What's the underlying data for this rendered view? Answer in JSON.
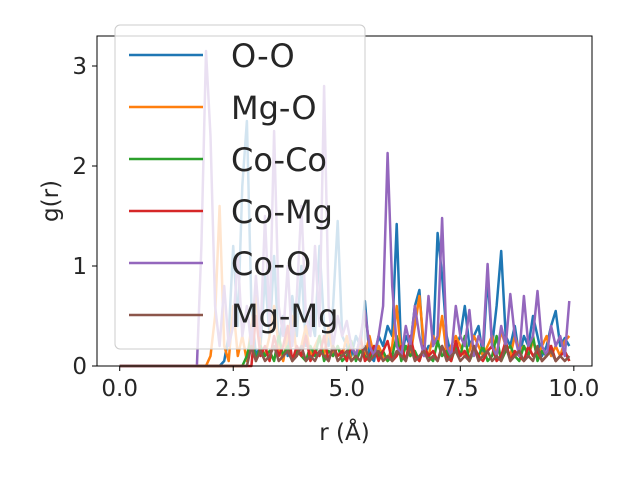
{
  "chart_data": {
    "type": "line",
    "title": "",
    "xlabel": "r (Å)",
    "ylabel": "g(r)",
    "xlim": [
      -0.5,
      10.4
    ],
    "ylim": [
      0,
      3.3
    ],
    "xticks": [
      0.0,
      2.5,
      5.0,
      7.5,
      10.0
    ],
    "xtick_labels": [
      "0.0",
      "2.5",
      "5.0",
      "7.5",
      "10.0"
    ],
    "yticks": [
      0,
      1,
      2,
      3
    ],
    "ytick_labels": [
      "0",
      "1",
      "2",
      "3"
    ],
    "grid": false,
    "legend_position": "upper-left",
    "series": [
      {
        "name": "O-O",
        "color": "#1f77b4",
        "x": [
          0.0,
          2.0,
          2.1,
          2.2,
          2.3,
          2.4,
          2.5,
          2.6,
          2.7,
          2.8,
          2.9,
          3.0,
          3.1,
          3.2,
          3.3,
          3.4,
          3.5,
          3.6,
          3.7,
          3.8,
          3.9,
          4.0,
          4.1,
          4.2,
          4.3,
          4.4,
          4.5,
          4.6,
          4.7,
          4.8,
          4.9,
          5.0,
          5.1,
          5.2,
          5.3,
          5.4,
          5.5,
          5.6,
          5.7,
          5.8,
          5.9,
          6.0,
          6.1,
          6.2,
          6.3,
          6.4,
          6.5,
          6.6,
          6.7,
          6.8,
          6.9,
          7.0,
          7.1,
          7.2,
          7.3,
          7.4,
          7.5,
          7.6,
          7.7,
          7.8,
          7.9,
          8.0,
          8.1,
          8.2,
          8.3,
          8.4,
          8.5,
          8.6,
          8.7,
          8.8,
          8.9,
          9.0,
          9.1,
          9.2,
          9.3,
          9.4,
          9.5,
          9.6,
          9.7,
          9.8,
          9.9
        ],
        "y": [
          0,
          0,
          0,
          0,
          0.05,
          0.3,
          1.2,
          0.4,
          1.8,
          2.45,
          0.6,
          0.1,
          0.2,
          0.9,
          0.3,
          1.1,
          0.2,
          0.5,
          0.1,
          0.7,
          0.3,
          1.0,
          0.2,
          0.5,
          0.3,
          1.2,
          0.4,
          0.2,
          0.6,
          1.45,
          0.3,
          0.2,
          0.1,
          0.3,
          0.2,
          0.65,
          0.1,
          0.05,
          0.3,
          0.2,
          0.4,
          0.3,
          1.42,
          0.1,
          0.3,
          0.2,
          0.6,
          0.76,
          0.1,
          0.2,
          0.2,
          1.33,
          0.9,
          0.3,
          0.1,
          0.2,
          0.3,
          0.6,
          0.2,
          0.3,
          0.4,
          0.1,
          0.9,
          0.2,
          0.6,
          1.15,
          0.3,
          0.2,
          0.4,
          0.1,
          0.3,
          0.2,
          0.5,
          0.3,
          0.1,
          0.2,
          0.4,
          0.55,
          0.2,
          0.28,
          0.2
        ]
      },
      {
        "name": "Mg-O",
        "color": "#ff7f0e",
        "x": [
          0.0,
          1.9,
          2.0,
          2.1,
          2.2,
          2.3,
          2.4,
          2.5,
          2.6,
          2.7,
          2.8,
          2.9,
          3.0,
          3.1,
          3.2,
          3.3,
          3.4,
          3.5,
          3.6,
          3.7,
          3.8,
          3.9,
          4.0,
          4.1,
          4.2,
          4.3,
          4.4,
          4.5,
          4.6,
          4.7,
          4.8,
          4.9,
          5.0,
          5.1,
          5.2,
          5.3,
          5.4,
          5.5,
          5.6,
          5.7,
          5.8,
          5.9,
          6.0,
          6.1,
          6.2,
          6.3,
          6.4,
          6.5,
          6.6,
          6.7,
          6.8,
          6.9,
          7.0,
          7.1,
          7.2,
          7.3,
          7.4,
          7.5,
          7.6,
          7.7,
          7.8,
          7.9,
          8.0,
          8.1,
          8.2,
          8.3,
          8.4,
          8.5,
          8.6,
          8.7,
          8.8,
          8.9,
          9.0,
          9.1,
          9.2,
          9.3,
          9.4,
          9.5,
          9.6,
          9.7,
          9.8,
          9.9
        ],
        "y": [
          0,
          0,
          0.1,
          0.5,
          1.6,
          0.2,
          0.05,
          0.6,
          0.1,
          0.3,
          0.05,
          0.4,
          0.7,
          0.2,
          0.1,
          0.3,
          0.6,
          0.2,
          0.05,
          0.3,
          0.5,
          0.1,
          0.2,
          0.4,
          0.1,
          0.2,
          0.3,
          0.1,
          0.4,
          0.1,
          0.2,
          0.1,
          0.3,
          0.05,
          0.1,
          0.2,
          0.1,
          0.3,
          0.1,
          0.2,
          0.1,
          0.05,
          0.2,
          0.6,
          0.1,
          0.2,
          0.1,
          0.4,
          0.7,
          0.2,
          0.1,
          0.3,
          0.2,
          0.5,
          0.1,
          0.2,
          0.3,
          0.2,
          0.1,
          0.15,
          0.3,
          0.2,
          0.1,
          0.2,
          0.3,
          0.1,
          0.35,
          0.2,
          0.1,
          0.3,
          0.15,
          0.2,
          0.1,
          0.25,
          0.1,
          0.2,
          0.3,
          0.1,
          0.2,
          0.1,
          0.25,
          0.3
        ]
      },
      {
        "name": "Co-Co",
        "color": "#2ca02c",
        "x": [
          0.0,
          2.7,
          2.8,
          2.9,
          3.0,
          3.1,
          3.2,
          3.3,
          3.4,
          3.5,
          3.6,
          3.7,
          3.8,
          3.9,
          4.0,
          4.1,
          4.2,
          4.3,
          4.4,
          4.5,
          4.6,
          4.7,
          4.8,
          4.9,
          5.0,
          5.1,
          5.2,
          5.3,
          5.4,
          5.5,
          5.6,
          5.7,
          5.8,
          5.9,
          6.0,
          6.1,
          6.2,
          6.3,
          6.4,
          6.5,
          6.6,
          6.7,
          6.8,
          6.9,
          7.0,
          7.1,
          7.2,
          7.3,
          7.4,
          7.5,
          7.6,
          7.7,
          7.8,
          7.9,
          8.0,
          8.1,
          8.2,
          8.3,
          8.4,
          8.5,
          8.6,
          8.7,
          8.8,
          8.9,
          9.0,
          9.1,
          9.2,
          9.3,
          9.4,
          9.5,
          9.6,
          9.7,
          9.8,
          9.9
        ],
        "y": [
          0,
          0,
          0.1,
          0.3,
          0.05,
          0.2,
          0.1,
          0.15,
          0.05,
          0.3,
          0.1,
          0.2,
          0.05,
          0.15,
          0.1,
          0.05,
          0.2,
          0.1,
          0.3,
          0.05,
          0.15,
          0.1,
          0.2,
          0.05,
          0.1,
          0.25,
          0.05,
          0.15,
          0.1,
          0.05,
          0.2,
          0.1,
          0.15,
          0.05,
          0.1,
          0.3,
          0.05,
          0.2,
          0.1,
          0.15,
          0.05,
          0.2,
          0.1,
          0.05,
          0.25,
          0.1,
          0.15,
          0.05,
          0.2,
          0.1,
          0.3,
          0.05,
          0.15,
          0.1,
          0.2,
          0.05,
          0.1,
          0.3,
          0.05,
          0.15,
          0.2,
          0.1,
          0.05,
          0.2,
          0.1,
          0.3,
          0.05,
          0.15,
          0.1,
          0.2,
          0.05,
          0.1,
          0.15,
          0.05
        ]
      },
      {
        "name": "Co-Mg",
        "color": "#d62728",
        "x": [
          0.0,
          2.9,
          3.0,
          3.1,
          3.2,
          3.3,
          3.4,
          3.5,
          3.6,
          3.7,
          3.8,
          3.9,
          4.0,
          4.1,
          4.2,
          4.3,
          4.4,
          4.5,
          4.6,
          4.7,
          4.8,
          4.9,
          5.0,
          5.1,
          5.2,
          5.3,
          5.4,
          5.5,
          5.6,
          5.7,
          5.8,
          5.9,
          6.0,
          6.1,
          6.2,
          6.3,
          6.4,
          6.5,
          6.6,
          6.7,
          6.8,
          6.9,
          7.0,
          7.1,
          7.2,
          7.3,
          7.4,
          7.5,
          7.6,
          7.7,
          7.8,
          7.9,
          8.0,
          8.1,
          8.2,
          8.3,
          8.4,
          8.5,
          8.6,
          8.7,
          8.8,
          8.9,
          9.0,
          9.1,
          9.2,
          9.3,
          9.4,
          9.5,
          9.6,
          9.7,
          9.8,
          9.9
        ],
        "y": [
          0,
          0,
          0.5,
          0.1,
          0.2,
          0.05,
          0.3,
          0.1,
          0.2,
          0.4,
          0.05,
          0.2,
          0.1,
          0.3,
          0.05,
          0.15,
          0.1,
          0.3,
          0.05,
          0.2,
          0.1,
          0.15,
          0.05,
          0.2,
          0.1,
          0.3,
          0.05,
          0.1,
          0.2,
          0.05,
          0.15,
          0.25,
          0.05,
          0.1,
          0.2,
          0.05,
          0.3,
          0.1,
          0.05,
          0.2,
          0.1,
          0.15,
          0.05,
          0.2,
          0.1,
          0.05,
          0.25,
          0.1,
          0.15,
          0.05,
          0.2,
          0.1,
          0.05,
          0.15,
          0.2,
          0.05,
          0.1,
          0.25,
          0.05,
          0.15,
          0.1,
          0.05,
          0.2,
          0.1,
          0.15,
          0.05,
          0.1,
          0.2,
          0.05,
          0.1,
          0.15,
          0.05
        ]
      },
      {
        "name": "Co-O",
        "color": "#9467bd",
        "x": [
          0.0,
          1.7,
          1.8,
          1.9,
          2.0,
          2.1,
          2.2,
          2.3,
          2.4,
          2.5,
          2.6,
          2.7,
          2.8,
          2.9,
          3.0,
          3.1,
          3.2,
          3.3,
          3.4,
          3.5,
          3.6,
          3.7,
          3.8,
          3.9,
          4.0,
          4.1,
          4.2,
          4.3,
          4.4,
          4.5,
          4.6,
          4.7,
          4.8,
          4.9,
          5.0,
          5.1,
          5.2,
          5.3,
          5.4,
          5.5,
          5.6,
          5.7,
          5.8,
          5.9,
          6.0,
          6.1,
          6.2,
          6.3,
          6.4,
          6.5,
          6.6,
          6.7,
          6.8,
          6.9,
          7.0,
          7.1,
          7.2,
          7.3,
          7.4,
          7.5,
          7.6,
          7.7,
          7.8,
          7.9,
          8.0,
          8.1,
          8.2,
          8.3,
          8.4,
          8.5,
          8.6,
          8.7,
          8.8,
          8.9,
          9.0,
          9.1,
          9.2,
          9.3,
          9.4,
          9.5,
          9.6,
          9.7,
          9.8,
          9.9
        ],
        "y": [
          0,
          0,
          1.2,
          3.15,
          2.3,
          0.6,
          0.2,
          0.8,
          0.2,
          0.4,
          1.1,
          0.3,
          0.6,
          0.2,
          0.9,
          0.3,
          1.5,
          0.4,
          2.35,
          0.6,
          0.3,
          1.0,
          0.2,
          0.7,
          1.6,
          0.5,
          0.3,
          1.2,
          0.4,
          2.8,
          0.6,
          0.2,
          0.5,
          0.3,
          0.45,
          0.2,
          0.1,
          0.3,
          0.55,
          0.2,
          0.1,
          0.3,
          0.6,
          2.13,
          0.8,
          0.2,
          0.1,
          0.4,
          0.2,
          0.6,
          0.3,
          0.1,
          0.7,
          0.2,
          0.3,
          1.48,
          0.2,
          0.1,
          0.6,
          0.3,
          0.2,
          0.56,
          0.1,
          0.3,
          0.2,
          1.02,
          0.2,
          0.1,
          0.4,
          0.2,
          0.72,
          0.3,
          0.1,
          0.7,
          0.2,
          0.3,
          0.75,
          0.2,
          0.1,
          0.4,
          0.2,
          0.3,
          0.1,
          0.65
        ]
      },
      {
        "name": "Mg-Mg",
        "color": "#8c564b",
        "x": [
          0.0,
          2.8,
          2.9,
          3.0,
          3.1,
          3.2,
          3.3,
          3.4,
          3.5,
          3.6,
          3.7,
          3.8,
          3.9,
          4.0,
          4.1,
          4.2,
          4.3,
          4.4,
          4.5,
          4.6,
          4.7,
          4.8,
          4.9,
          5.0,
          5.1,
          5.2,
          5.3,
          5.4,
          5.5,
          5.6,
          5.7,
          5.8,
          5.9,
          6.0,
          6.1,
          6.2,
          6.3,
          6.4,
          6.5,
          6.6,
          6.7,
          6.8,
          6.9,
          7.0,
          7.1,
          7.2,
          7.3,
          7.4,
          7.5,
          7.6,
          7.7,
          7.8,
          7.9,
          8.0,
          8.1,
          8.2,
          8.3,
          8.4,
          8.5,
          8.6,
          8.7,
          8.8,
          8.9,
          9.0,
          9.1,
          9.2,
          9.3,
          9.4,
          9.5,
          9.6,
          9.7,
          9.8,
          9.9
        ],
        "y": [
          0,
          0,
          0.2,
          0.05,
          0.15,
          0.05,
          0.1,
          0.2,
          0.05,
          0.1,
          0.15,
          0.05,
          0.1,
          0.2,
          0.05,
          0.1,
          0.05,
          0.15,
          0.1,
          0.05,
          0.2,
          0.05,
          0.1,
          0.15,
          0.05,
          0.1,
          0.05,
          0.2,
          0.05,
          0.1,
          0.15,
          0.05,
          0.1,
          0.05,
          0.15,
          0.1,
          0.05,
          0.2,
          0.05,
          0.1,
          0.15,
          0.05,
          0.1,
          0.05,
          0.2,
          0.05,
          0.1,
          0.15,
          0.05,
          0.1,
          0.05,
          0.2,
          0.05,
          0.1,
          0.15,
          0.05,
          0.1,
          0.05,
          0.2,
          0.05,
          0.1,
          0.15,
          0.05,
          0.1,
          0.05,
          0.2,
          0.05,
          0.1,
          0.15,
          0.05,
          0.1,
          0.05,
          0.1
        ]
      }
    ]
  }
}
